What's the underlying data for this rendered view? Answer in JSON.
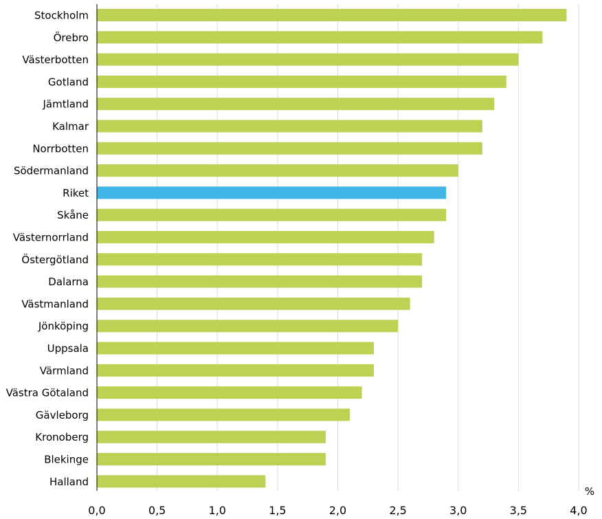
{
  "chart_data": {
    "type": "bar",
    "orientation": "horizontal",
    "categories": [
      "Stockholm",
      "Örebro",
      "Västerbotten",
      "Gotland",
      "Jämtland",
      "Kalmar",
      "Norrbotten",
      "Södermanland",
      "Riket",
      "Skåne",
      "Västernorrland",
      "Östergötland",
      "Dalarna",
      "Västmanland",
      "Jönköping",
      "Uppsala",
      "Värmland",
      "Västra Götaland",
      "Gävleborg",
      "Kronoberg",
      "Blekinge",
      "Halland"
    ],
    "values": [
      3.9,
      3.7,
      3.5,
      3.4,
      3.3,
      3.2,
      3.2,
      3.0,
      2.9,
      2.9,
      2.8,
      2.7,
      2.7,
      2.6,
      2.5,
      2.3,
      2.3,
      2.2,
      2.1,
      1.9,
      1.9,
      1.4
    ],
    "highlight": "Riket",
    "colors": {
      "bar": "#BDD252",
      "highlight": "#41B6E6",
      "grid": "#D9D9D9",
      "axis": "#000000"
    },
    "xlim": [
      0,
      4.0
    ],
    "xticks": [
      "0,0",
      "0,5",
      "1,0",
      "1,5",
      "2,0",
      "2,5",
      "3,0",
      "3,5",
      "4,0"
    ],
    "xunit": "%",
    "grid": "vertical",
    "legend": "none"
  }
}
